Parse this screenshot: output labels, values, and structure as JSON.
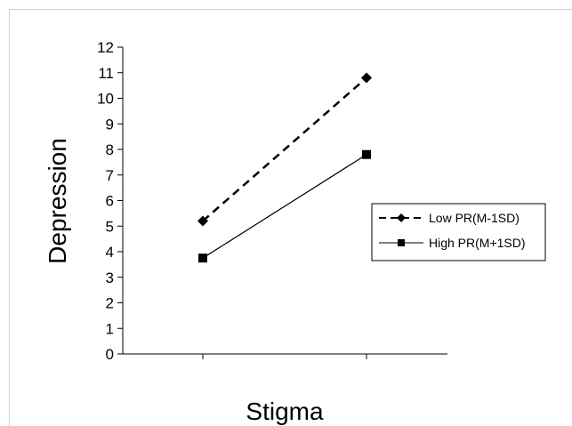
{
  "chart_data": {
    "type": "line",
    "xlabel": "Stigma",
    "ylabel": "Depression",
    "ylim": [
      0,
      12
    ],
    "yticks": [
      "0",
      "1",
      "2",
      "3",
      "4",
      "5",
      "6",
      "7",
      "8",
      "9",
      "10",
      "11",
      "12"
    ],
    "x": [
      1,
      2
    ],
    "grid": false,
    "legend_position": "right",
    "series": [
      {
        "name": "Low PR(M-1SD)",
        "values": [
          5.2,
          10.8
        ],
        "line_style": "dashed",
        "marker": "diamond",
        "color": "#000000"
      },
      {
        "name": "High PR(M+1SD)",
        "values": [
          3.75,
          7.8
        ],
        "line_style": "solid",
        "marker": "square",
        "color": "#000000"
      }
    ]
  }
}
